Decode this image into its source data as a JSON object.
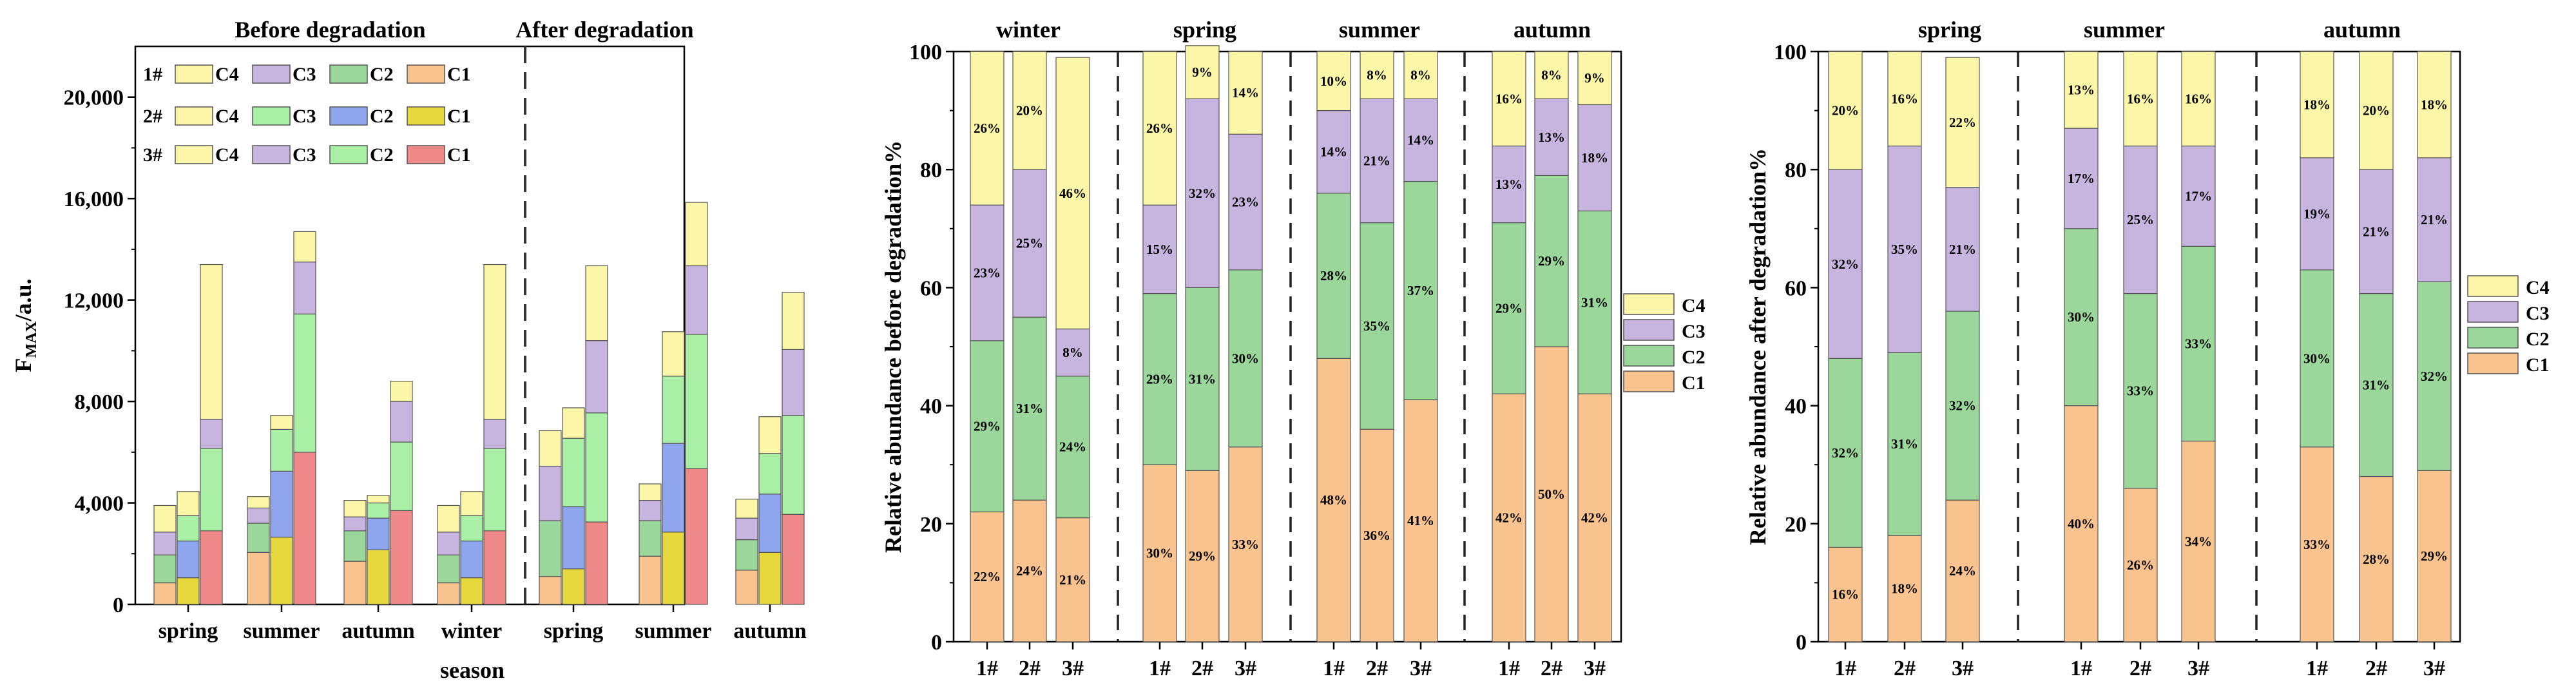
{
  "colors": {
    "C1": "#F8C38F",
    "C2": "#9BD69B",
    "C3": "#C8B5DF",
    "C4": "#FCF7A8",
    "C2_light": "#A9F0A6",
    "C2_blue": "#8FA6EF",
    "C1_yellow": "#E7D83E",
    "C1_red": "#F08A8A"
  },
  "chart_data": [
    {
      "type": "bar",
      "stacked": true,
      "panel": "a",
      "ylabel_main": "F",
      "ylabel_sub": "MAX",
      "ylabel_unit": "/a.u.",
      "xlabel": "season",
      "ylim": [
        0,
        22000
      ],
      "yticks": [
        "0",
        "4,000",
        "8,000",
        "12,000",
        "16,000",
        "20,000"
      ],
      "ytick_values": [
        0,
        4000,
        8000,
        12000,
        16000,
        20000
      ],
      "section_titles": [
        "Before degradation",
        "After degradation"
      ],
      "legend_rows": [
        {
          "label": "1#",
          "items": [
            {
              "name": "C4",
              "color": "#FCF7A8"
            },
            {
              "name": "C3",
              "color": "#C8B5DF"
            },
            {
              "name": "C2",
              "color": "#9BD69B"
            },
            {
              "name": "C1",
              "color": "#F8C38F"
            }
          ]
        },
        {
          "label": "2#",
          "items": [
            {
              "name": "C4",
              "color": "#FCF7A8"
            },
            {
              "name": "C3",
              "color": "#A9F0A6"
            },
            {
              "name": "C2",
              "color": "#8FA6EF"
            },
            {
              "name": "C1",
              "color": "#E7D83E"
            }
          ]
        },
        {
          "label": "3#",
          "items": [
            {
              "name": "C4",
              "color": "#FCF7A8"
            },
            {
              "name": "C3",
              "color": "#C8B5DF"
            },
            {
              "name": "C2",
              "color": "#A9F0A6"
            },
            {
              "name": "C1",
              "color": "#F08A8A"
            }
          ]
        }
      ],
      "groups": [
        {
          "label": "spring",
          "section": "before",
          "bars": [
            [
              850,
              1100,
              900,
              1050
            ],
            [
              1050,
              1450,
              1000,
              950
            ],
            [
              2900,
              3250,
              1150,
              6100
            ]
          ]
        },
        {
          "label": "summer",
          "section": "before",
          "bars": [
            [
              2050,
              1150,
              600,
              450
            ],
            [
              2650,
              2600,
              1650,
              550
            ],
            [
              6000,
              5450,
              2050,
              1200
            ]
          ]
        },
        {
          "label": "autumn",
          "section": "before",
          "bars": [
            [
              1700,
              1200,
              550,
              650
            ],
            [
              2150,
              1250,
              600,
              300
            ],
            [
              3700,
              2700,
              1600,
              800
            ]
          ]
        },
        {
          "label": "winter",
          "section": "before",
          "bars": [
            [
              850,
              1100,
              900,
              1050
            ],
            [
              1050,
              1450,
              1000,
              950
            ],
            [
              2900,
              3250,
              1150,
              6100
            ]
          ]
        },
        {
          "label": "spring",
          "section": "after",
          "bars": [
            [
              1100,
              2200,
              2150,
              1400
            ],
            [
              1400,
              2450,
              2700,
              1200
            ],
            [
              3250,
              4300,
              2850,
              2950
            ]
          ]
        },
        {
          "label": "summer",
          "section": "after",
          "bars": [
            [
              1900,
              1400,
              800,
              650
            ],
            [
              2850,
              3500,
              2650,
              1750
            ],
            [
              5350,
              5300,
              2700,
              2500
            ]
          ]
        },
        {
          "label": "autumn",
          "section": "after",
          "bars": [
            [
              1350,
              1200,
              850,
              750
            ],
            [
              2050,
              2300,
              1600,
              1450
            ],
            [
              3550,
              3900,
              2600,
              2250
            ]
          ]
        }
      ]
    },
    {
      "type": "bar",
      "stacked": true,
      "panel": "b",
      "ylabel": "Relative abundance before degradation%",
      "ylim": [
        0,
        100
      ],
      "yticks": [
        "0",
        "20",
        "40",
        "60",
        "80",
        "100"
      ],
      "components": [
        "C1",
        "C2",
        "C3",
        "C4"
      ],
      "legend": [
        "C4",
        "C3",
        "C2",
        "C1"
      ],
      "groups": [
        {
          "season": "winter",
          "bars": [
            {
              "site": "1#",
              "values": [
                22,
                29,
                23,
                26
              ],
              "labels": [
                "22%",
                "29%",
                "23%",
                "26%"
              ]
            },
            {
              "site": "2#",
              "values": [
                24,
                31,
                25,
                20
              ],
              "labels": [
                "24%",
                "31%",
                "25%",
                "20%"
              ]
            },
            {
              "site": "3#",
              "values": [
                21,
                24,
                8,
                46
              ],
              "labels": [
                "21%",
                "24%",
                "8%",
                "46%"
              ]
            }
          ]
        },
        {
          "season": "spring",
          "bars": [
            {
              "site": "1#",
              "values": [
                30,
                29,
                15,
                26
              ],
              "labels": [
                "30%",
                "29%",
                "15%",
                "26%"
              ]
            },
            {
              "site": "2#",
              "values": [
                29,
                31,
                32,
                9
              ],
              "labels": [
                "29%",
                "31%",
                "32%",
                "9%"
              ]
            },
            {
              "site": "3#",
              "values": [
                33,
                30,
                23,
                14
              ],
              "labels": [
                "33%",
                "30%",
                "23%",
                "14%"
              ]
            }
          ]
        },
        {
          "season": "summer",
          "bars": [
            {
              "site": "1#",
              "values": [
                48,
                28,
                14,
                10
              ],
              "labels": [
                "48%",
                "28%",
                "14%",
                "10%"
              ]
            },
            {
              "site": "2#",
              "values": [
                36,
                35,
                21,
                8
              ],
              "labels": [
                "36%",
                "35%",
                "21%",
                "8%"
              ]
            },
            {
              "site": "3#",
              "values": [
                41,
                37,
                14,
                8
              ],
              "labels": [
                "41%",
                "37%",
                "14%",
                "8%"
              ]
            }
          ]
        },
        {
          "season": "autumn",
          "bars": [
            {
              "site": "1#",
              "values": [
                42,
                29,
                13,
                16
              ],
              "labels": [
                "42%",
                "29%",
                "13%",
                "16%"
              ]
            },
            {
              "site": "2#",
              "values": [
                50,
                29,
                13,
                8
              ],
              "labels": [
                "50%",
                "29%",
                "13%",
                "8%"
              ]
            },
            {
              "site": "3#",
              "values": [
                42,
                31,
                18,
                9
              ],
              "labels": [
                "42%",
                "31%",
                "18%",
                "9%"
              ]
            }
          ]
        }
      ]
    },
    {
      "type": "bar",
      "stacked": true,
      "panel": "c",
      "ylabel": "Relative abundance after degradation%",
      "ylim": [
        0,
        100
      ],
      "yticks": [
        "0",
        "20",
        "40",
        "60",
        "80",
        "100"
      ],
      "components": [
        "C1",
        "C2",
        "C3",
        "C4"
      ],
      "legend": [
        "C4",
        "C3",
        "C2",
        "C1"
      ],
      "groups": [
        {
          "season": "spring",
          "bars": [
            {
              "site": "1#",
              "values": [
                16,
                32,
                32,
                20
              ],
              "labels": [
                "16%",
                "32%",
                "32%",
                "20%"
              ]
            },
            {
              "site": "2#",
              "values": [
                18,
                31,
                35,
                16
              ],
              "labels": [
                "18%",
                "31%",
                "35%",
                "16%"
              ]
            },
            {
              "site": "3#",
              "values": [
                24,
                32,
                21,
                22
              ],
              "labels": [
                "24%",
                "32%",
                "21%",
                "22%"
              ]
            }
          ]
        },
        {
          "season": "summer",
          "bars": [
            {
              "site": "1#",
              "values": [
                40,
                30,
                17,
                13
              ],
              "labels": [
                "40%",
                "30%",
                "17%",
                "13%"
              ]
            },
            {
              "site": "2#",
              "values": [
                26,
                33,
                25,
                16
              ],
              "labels": [
                "26%",
                "33%",
                "25%",
                "16%"
              ]
            },
            {
              "site": "3#",
              "values": [
                34,
                33,
                17,
                16
              ],
              "labels": [
                "34%",
                "33%",
                "17%",
                "16%"
              ]
            }
          ]
        },
        {
          "season": "autumn",
          "bars": [
            {
              "site": "1#",
              "values": [
                33,
                30,
                19,
                18
              ],
              "labels": [
                "33%",
                "30%",
                "19%",
                "18%"
              ]
            },
            {
              "site": "2#",
              "values": [
                28,
                31,
                21,
                20
              ],
              "labels": [
                "28%",
                "31%",
                "21%",
                "20%"
              ]
            },
            {
              "site": "3#",
              "values": [
                29,
                32,
                21,
                18
              ],
              "labels": [
                "29%",
                "32%",
                "21%",
                "18%"
              ]
            }
          ]
        }
      ]
    }
  ]
}
